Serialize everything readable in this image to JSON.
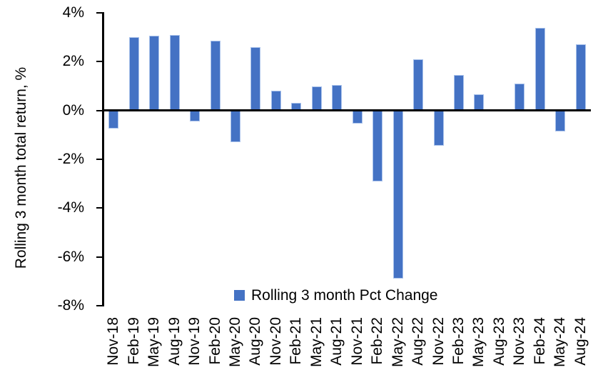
{
  "chart_data": {
    "type": "bar",
    "title": "",
    "ylabel": "Rolling 3 month total return, %",
    "xlabel": "",
    "ylim": [
      -8,
      4
    ],
    "grid": false,
    "legend_position": "bottom-center",
    "legend_label": "Rolling 3 month Pct Change",
    "bar_color": "#4472C4",
    "bar_edge_color": "#A9C2EB",
    "axis_color": "#000000",
    "text_color": "#000000",
    "yticks": [
      {
        "label": "4%",
        "value": 4
      },
      {
        "label": "2%",
        "value": 2
      },
      {
        "label": "0%",
        "value": 0
      },
      {
        "label": "-2%",
        "value": -2
      },
      {
        "label": "-4%",
        "value": -4
      },
      {
        "label": "-6%",
        "value": -6
      },
      {
        "label": "-8%",
        "value": -8
      }
    ],
    "categories": [
      "Nov-18",
      "Feb-19",
      "May-19",
      "Aug-19",
      "Nov-19",
      "Feb-20",
      "May-20",
      "Aug-20",
      "Nov-20",
      "Feb-21",
      "May-21",
      "Aug-21",
      "Nov-21",
      "Feb-22",
      "May-22",
      "Aug-22",
      "Nov-22",
      "Feb-23",
      "May-23",
      "Aug-23",
      "Nov-23",
      "Feb-24",
      "May-24",
      "Aug-24"
    ],
    "values": [
      -0.75,
      3.0,
      3.05,
      3.1,
      -0.45,
      2.85,
      -1.3,
      2.6,
      0.8,
      0.3,
      1.0,
      1.05,
      -0.55,
      -2.9,
      -6.9,
      2.1,
      -1.45,
      1.45,
      0.65,
      0,
      1.1,
      3.4,
      -0.85,
      2.7
    ]
  }
}
